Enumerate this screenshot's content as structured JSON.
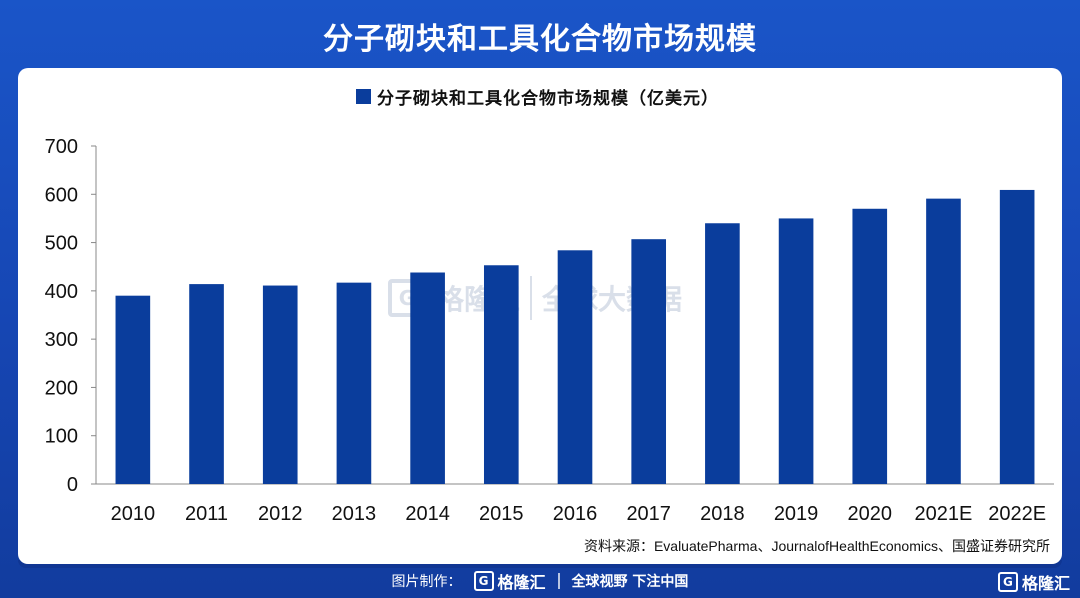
{
  "title": "分子砌块和工具化合物市场规模",
  "watermark": {
    "logo_glyph": "G",
    "brand": "格隆汇",
    "product": "全球大数据"
  },
  "footer": {
    "made_by_label": "图片制作：",
    "brand_glyph": "G",
    "brand": "格隆汇",
    "slogan": "全球视野 下注中国",
    "corner_glyph": "G",
    "corner_brand": "格隆汇"
  },
  "source": "资料来源：EvaluatePharma、JournalofHealthEconomics、国盛证券研究所",
  "colors": {
    "bar": "#0a3d9c",
    "background": "#1a55c8",
    "axis": "#888888"
  },
  "chart_data": {
    "type": "bar",
    "title": "",
    "legend": [
      "分子砌块和工具化合物市场规模（亿美元）"
    ],
    "legend_position": "top-center",
    "categories": [
      "2010",
      "2011",
      "2012",
      "2013",
      "2014",
      "2015",
      "2016",
      "2017",
      "2018",
      "2019",
      "2020",
      "2021E",
      "2022E"
    ],
    "series": [
      {
        "name": "分子砌块和工具化合物市场规模（亿美元）",
        "values": [
          390,
          414,
          411,
          417,
          438,
          453,
          484,
          507,
          540,
          550,
          570,
          591,
          609
        ]
      }
    ],
    "ylim": [
      0,
      700
    ],
    "yticks": [
      0,
      100,
      200,
      300,
      400,
      500,
      600,
      700
    ],
    "xlabel": "",
    "ylabel": "",
    "grid": false
  }
}
